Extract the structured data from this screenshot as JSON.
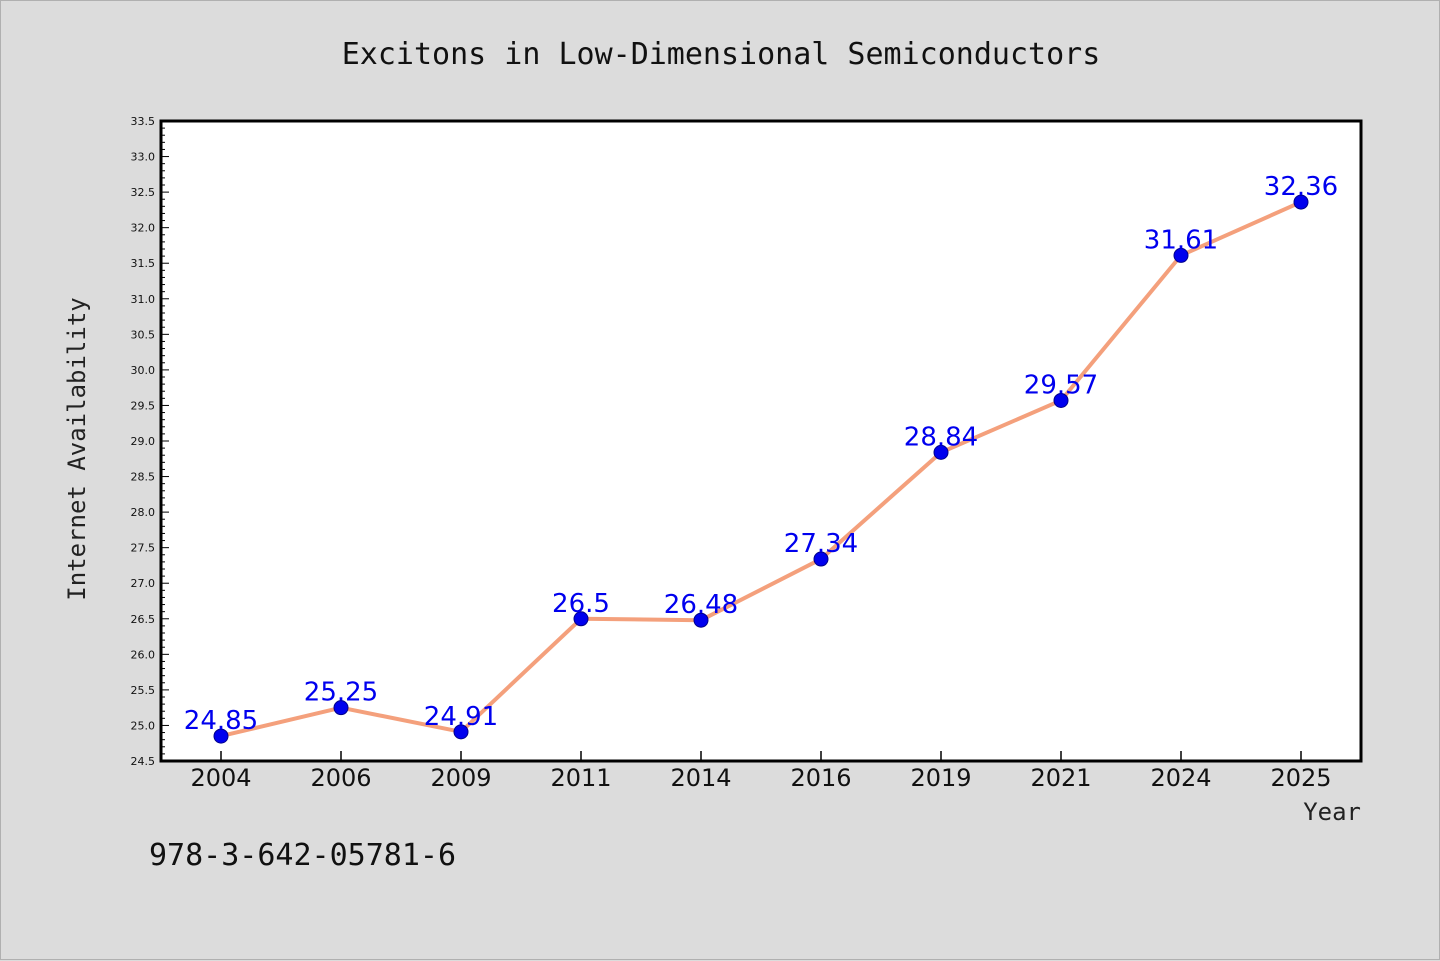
{
  "chart_data": {
    "type": "line",
    "title": "Excitons in Low-Dimensional Semiconductors",
    "xlabel": "Year",
    "ylabel": "Internet Availability",
    "categories": [
      "2004",
      "2006",
      "2009",
      "2011",
      "2014",
      "2016",
      "2019",
      "2021",
      "2024",
      "2025"
    ],
    "series": [
      {
        "values": [
          24.85,
          25.25,
          24.91,
          26.5,
          26.48,
          27.34,
          28.84,
          29.57,
          31.61,
          32.36
        ],
        "data_labels": [
          "24.85",
          "25.25",
          "24.91",
          "26.5",
          "26.48",
          "27.34",
          "28.84",
          "29.57",
          "31.61",
          "32.36"
        ]
      }
    ],
    "ylim": [
      24.5,
      33.5
    ],
    "yticks": [
      "24.5",
      "25.0",
      "25.5",
      "26.0",
      "26.5",
      "27.0",
      "27.5",
      "28.0",
      "28.5",
      "29.0",
      "29.5",
      "30.0",
      "30.5",
      "31.0",
      "31.5",
      "32.0",
      "32.5",
      "33.0",
      "33.5"
    ],
    "ytick_values": [
      24.5,
      25.0,
      25.5,
      26.0,
      26.5,
      27.0,
      27.5,
      28.0,
      28.5,
      29.0,
      29.5,
      30.0,
      30.5,
      31.0,
      31.5,
      32.0,
      32.5,
      33.0,
      33.5
    ],
    "grid": false,
    "legend": "none",
    "colors": {
      "line": "#f4a07c",
      "marker_fill": "#0000ee",
      "marker_stroke": "#00008b",
      "data_label": "#0000ee",
      "background": "#dcdcdc",
      "plot_background": "#ffffff"
    }
  },
  "annotation": {
    "isbn": "978-3-642-05781-6"
  }
}
